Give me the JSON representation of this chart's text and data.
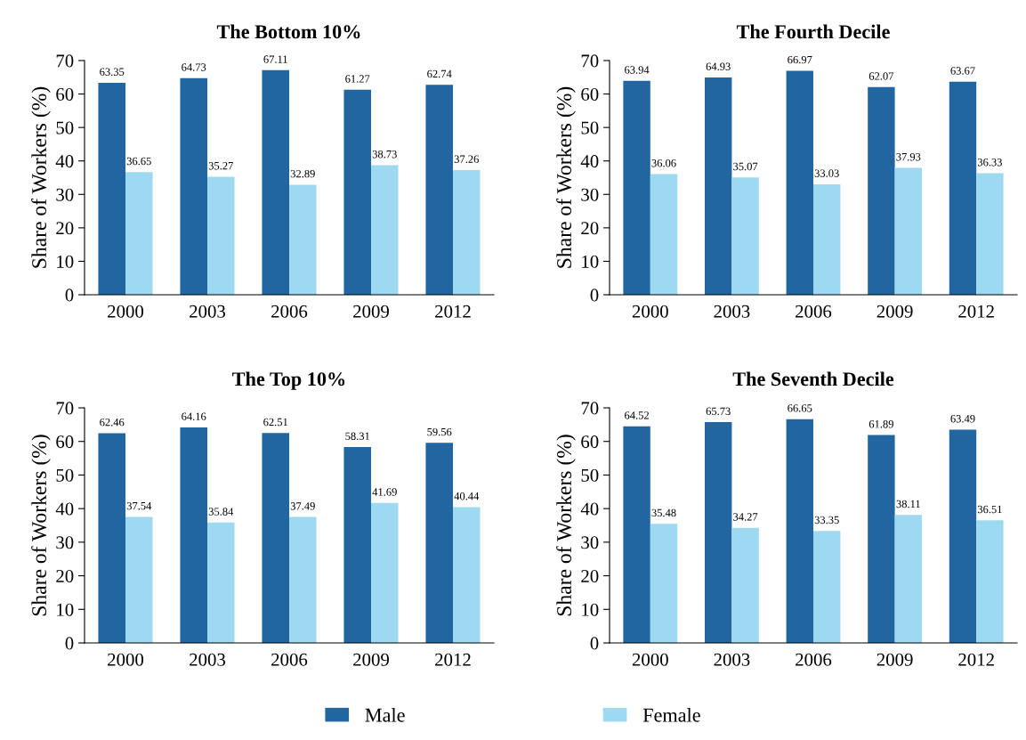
{
  "chart_data": [
    {
      "type": "bar",
      "title": "The Bottom 10%",
      "ylabel": "Share of Workers (%)",
      "categories": [
        "2000",
        "2003",
        "2006",
        "2009",
        "2012"
      ],
      "ylim": [
        0,
        70
      ],
      "yticks": [
        0,
        10,
        20,
        30,
        40,
        50,
        60,
        70
      ],
      "grid": false,
      "legend": "bottom",
      "data_labels": true,
      "series": [
        {
          "name": "Male",
          "color": "#2166a0",
          "values": [
            63.35,
            64.73,
            67.11,
            61.27,
            62.74
          ]
        },
        {
          "name": "Female",
          "color": "#9dd9f0",
          "values": [
            36.65,
            35.27,
            32.89,
            38.73,
            37.26
          ]
        }
      ]
    },
    {
      "type": "bar",
      "title": "The Fourth Decile",
      "ylabel": "Share of Workers (%)",
      "categories": [
        "2000",
        "2003",
        "2006",
        "2009",
        "2012"
      ],
      "ylim": [
        0,
        70
      ],
      "yticks": [
        0,
        10,
        20,
        30,
        40,
        50,
        60,
        70
      ],
      "grid": false,
      "legend": "bottom",
      "data_labels": true,
      "series": [
        {
          "name": "Male",
          "color": "#2166a0",
          "values": [
            63.94,
            64.93,
            66.97,
            62.07,
            63.67
          ]
        },
        {
          "name": "Female",
          "color": "#9dd9f0",
          "values": [
            36.06,
            35.07,
            33.03,
            37.93,
            36.33
          ]
        }
      ]
    },
    {
      "type": "bar",
      "title": "The Top 10%",
      "ylabel": "Share of Workers (%)",
      "categories": [
        "2000",
        "2003",
        "2006",
        "2009",
        "2012"
      ],
      "ylim": [
        0,
        70
      ],
      "yticks": [
        0,
        10,
        20,
        30,
        40,
        50,
        60,
        70
      ],
      "grid": false,
      "legend": "bottom",
      "data_labels": true,
      "series": [
        {
          "name": "Male",
          "color": "#2166a0",
          "values": [
            62.46,
            64.16,
            62.51,
            58.31,
            59.56
          ]
        },
        {
          "name": "Female",
          "color": "#9dd9f0",
          "values": [
            37.54,
            35.84,
            37.49,
            41.69,
            40.44
          ]
        }
      ]
    },
    {
      "type": "bar",
      "title": "The Seventh Decile",
      "ylabel": "Share of Workers (%)",
      "categories": [
        "2000",
        "2003",
        "2006",
        "2009",
        "2012"
      ],
      "ylim": [
        0,
        70
      ],
      "yticks": [
        0,
        10,
        20,
        30,
        40,
        50,
        60,
        70
      ],
      "grid": false,
      "legend": "bottom",
      "data_labels": true,
      "series": [
        {
          "name": "Male",
          "color": "#2166a0",
          "values": [
            64.52,
            65.73,
            66.65,
            61.89,
            63.49
          ]
        },
        {
          "name": "Female",
          "color": "#9dd9f0",
          "values": [
            35.48,
            34.27,
            33.35,
            38.11,
            36.51
          ]
        }
      ]
    }
  ]
}
